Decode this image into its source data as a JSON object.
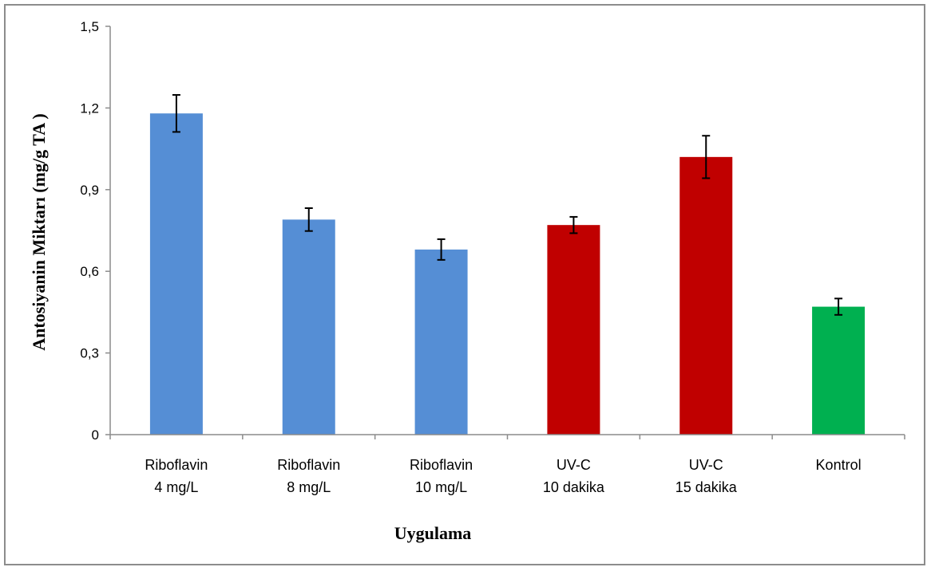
{
  "chart_data": {
    "type": "bar",
    "title": "",
    "xlabel": "Uygulama",
    "ylabel": "Antosiyanin Miktarı (mg/g TA )",
    "ylim": [
      0,
      1.5
    ],
    "yticks": [
      {
        "value": 0,
        "label": "0"
      },
      {
        "value": 0.3,
        "label": "0,3"
      },
      {
        "value": 0.6,
        "label": "0,6"
      },
      {
        "value": 0.9,
        "label": "0,9"
      },
      {
        "value": 1.2,
        "label": "1,2"
      },
      {
        "value": 1.5,
        "label": "1,5"
      }
    ],
    "categories": [
      [
        "Riboflavin",
        "4 mg/L"
      ],
      [
        "Riboflavin",
        "8 mg/L"
      ],
      [
        "Riboflavin",
        "10 mg/L"
      ],
      [
        "UV-C",
        "10 dakika"
      ],
      [
        "UV-C",
        "15 dakika"
      ],
      [
        "Kontrol"
      ]
    ],
    "values": [
      1.18,
      0.79,
      0.68,
      0.77,
      1.02,
      0.47
    ],
    "errors": [
      0.068,
      0.042,
      0.038,
      0.03,
      0.078,
      0.03
    ],
    "colors": [
      "#558ed5",
      "#558ed5",
      "#558ed5",
      "#c00000",
      "#c00000",
      "#00b050"
    ],
    "grid": false,
    "legend": "none"
  }
}
